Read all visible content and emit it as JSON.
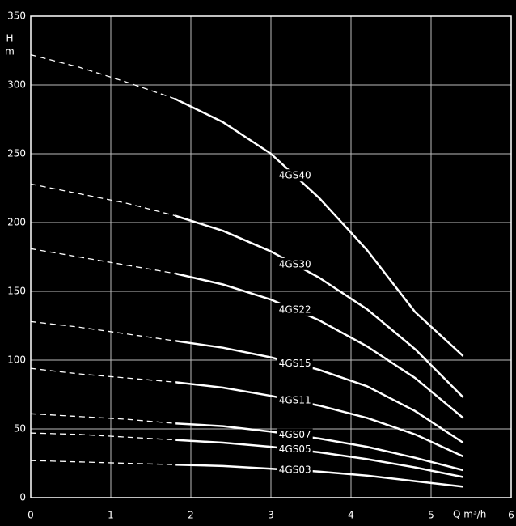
{
  "chart_data": {
    "type": "line",
    "y_label": [
      "H",
      "m"
    ],
    "x_label": "Q m³/h",
    "x": [
      0,
      0.6,
      1.2,
      1.8,
      2.4,
      3,
      3.6,
      4.2,
      4.8,
      5.4
    ],
    "dashed_xlim": [
      0,
      1.8
    ],
    "series": [
      {
        "name": "4GS40",
        "color": "#ffffff",
        "values": [
          322,
          313,
          302,
          290,
          273,
          250,
          218,
          180,
          135,
          103
        ]
      },
      {
        "name": "4GS30",
        "color": "#ffffff",
        "values": [
          228,
          221,
          214,
          205,
          194,
          179,
          160,
          137,
          108,
          73
        ]
      },
      {
        "name": "4GS22",
        "color": "#ffffff",
        "values": [
          181,
          175,
          169,
          163,
          155,
          144,
          129,
          110,
          87,
          58
        ]
      },
      {
        "name": "4GS15",
        "color": "#ffffff",
        "values": [
          128,
          124,
          119,
          114,
          109,
          102,
          93,
          81,
          63,
          40
        ]
      },
      {
        "name": "4GS11",
        "color": "#ffffff",
        "values": [
          94,
          90,
          87,
          84,
          80,
          74,
          67,
          58,
          46,
          30
        ]
      },
      {
        "name": "4GS07",
        "color": "#ffffff",
        "values": [
          61,
          59,
          57,
          54,
          52,
          48,
          43,
          37,
          29,
          20
        ]
      },
      {
        "name": "4GS05",
        "color": "#ffffff",
        "values": [
          47,
          46,
          44,
          42,
          40,
          37,
          33,
          28,
          22,
          15
        ]
      },
      {
        "name": "4GS03",
        "color": "#ffffff",
        "values": [
          27,
          26,
          25,
          24,
          23,
          21,
          19,
          16,
          12,
          8
        ]
      }
    ],
    "xlim": [
      0,
      6
    ],
    "xticks": [
      0,
      1,
      2,
      3,
      4,
      5,
      6
    ],
    "ylim": [
      0,
      350
    ],
    "yticks": [
      0,
      50,
      100,
      150,
      200,
      250,
      300,
      350
    ],
    "grid": true
  }
}
